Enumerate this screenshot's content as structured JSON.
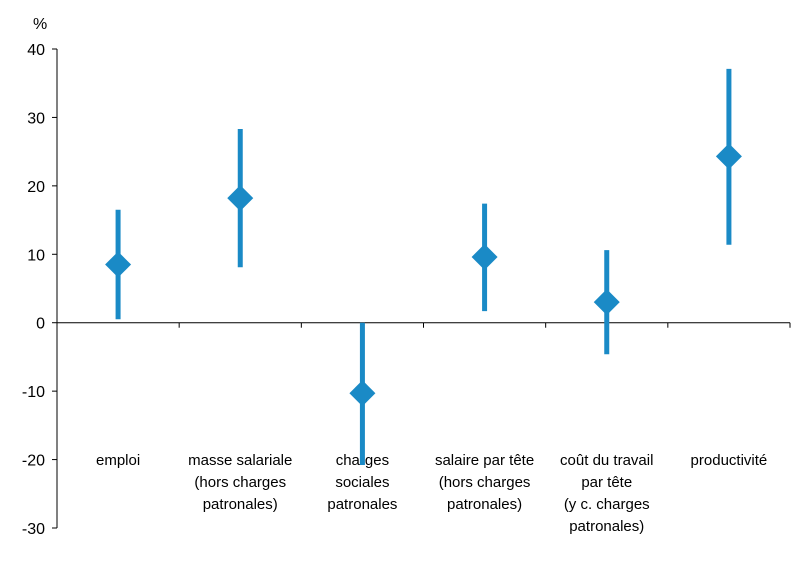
{
  "chart_data": {
    "type": "error-bar",
    "y_unit": "%",
    "ylim": [
      -30,
      40
    ],
    "yticks": [
      "40",
      "30",
      "20",
      "10",
      "0",
      "-10",
      "-20",
      "-30"
    ],
    "categories": [
      [
        "emploi"
      ],
      [
        "masse salariale",
        "(hors charges",
        "patronales)"
      ],
      [
        "charges",
        "sociales",
        "patronales"
      ],
      [
        "salaire par tête",
        "(hors charges",
        "patronales)"
      ],
      [
        "coût du travail",
        "par tête",
        "(y c. charges",
        "patronales)"
      ],
      [
        "productivité"
      ]
    ],
    "series": [
      {
        "points": [
          {
            "value": 8.5,
            "low": 0.5,
            "high": 16.5
          },
          {
            "value": 18.2,
            "low": 8.1,
            "high": 28.3
          },
          {
            "value": -10.3,
            "low": -20.8,
            "high": 0
          },
          {
            "value": 9.6,
            "low": 1.7,
            "high": 17.4
          },
          {
            "value": 3.0,
            "low": -4.6,
            "high": 10.6
          },
          {
            "value": 24.3,
            "low": 11.4,
            "high": 37.1
          }
        ]
      }
    ],
    "colors": {
      "bar": "#1a8ac6",
      "marker": "#1a8ac6",
      "axis": "#000000"
    },
    "grid": false,
    "legend": "none"
  }
}
